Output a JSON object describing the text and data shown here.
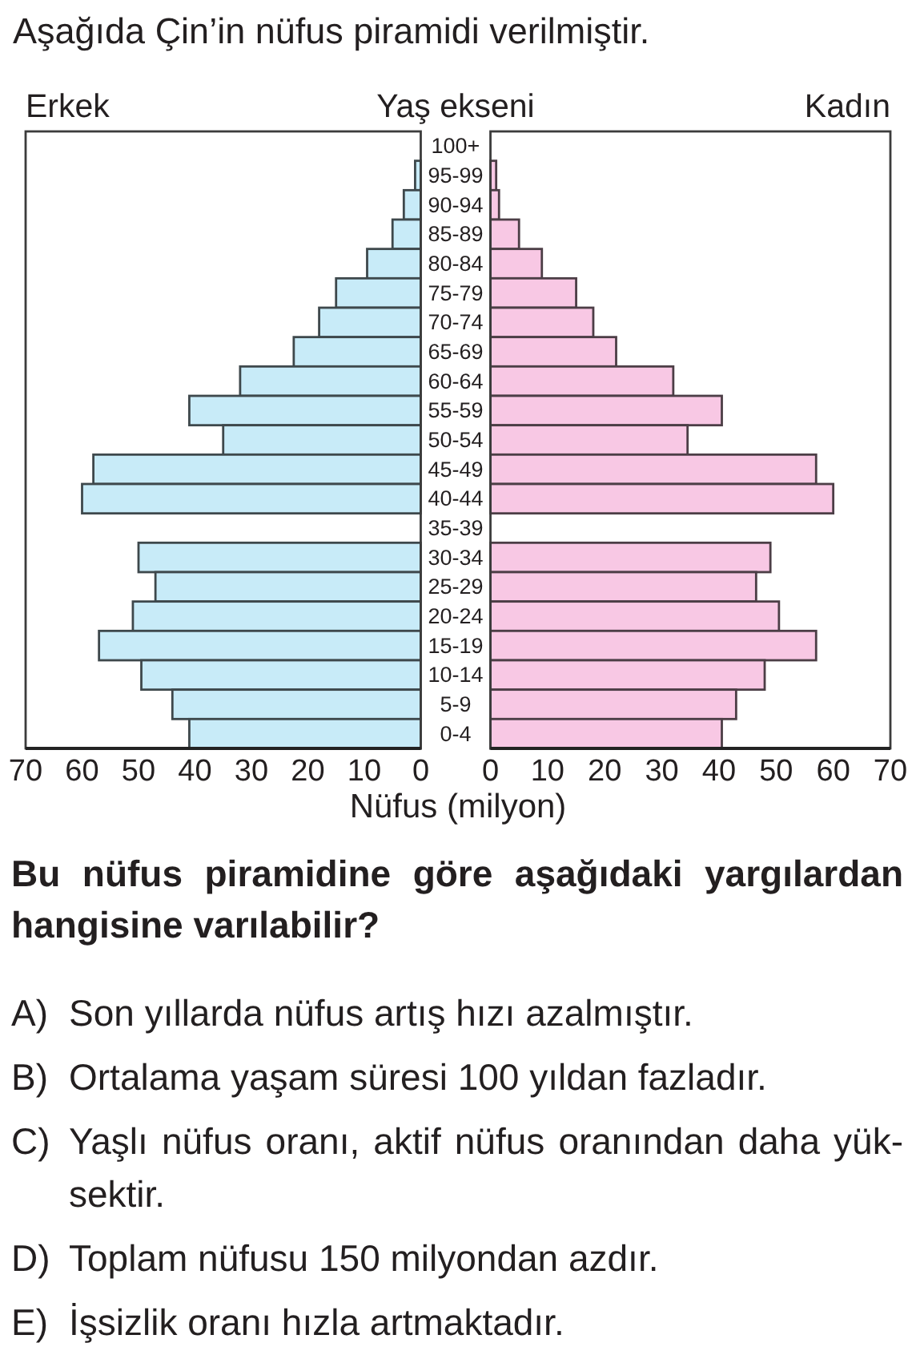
{
  "chart_data": [
    {
      "type": "bar",
      "orientation": "horizontal",
      "title": "Aşağıda Çin’in nüfus piramidi verilmiştir.",
      "ylabel": "Yaş ekseni",
      "xlabel": "Nüfus (milyon)",
      "categories": [
        "100+",
        "95-99",
        "90-94",
        "85-89",
        "80-84",
        "75-79",
        "70-74",
        "65-69",
        "60-64",
        "55-59",
        "50-54",
        "45-49",
        "40-44",
        "35-39",
        "30-34",
        "25-29",
        "20-24",
        "15-19",
        "10-14",
        "5-9",
        "0-4"
      ],
      "series": [
        {
          "name": "Erkek",
          "color": "#c8ebf8",
          "values": [
            null,
            1,
            3,
            5,
            9.5,
            15,
            18,
            22.5,
            32,
            41,
            35,
            58,
            60,
            null,
            50,
            47,
            51,
            57,
            49.5,
            44,
            41
          ]
        }
      ],
      "xlim": [
        70,
        0
      ],
      "xticks": [
        70,
        60,
        50,
        40,
        30,
        20,
        10,
        0
      ],
      "annotations": [
        "Bu nüfus piramidine göre aşağıdaki yargılardan hangisine varılabilir?",
        "A) Son yıllarda nüfus artış hızı azalmıştır.",
        "B) Ortalama yaşam süresi 100 yıldan fazladır.",
        "C) Yaşlı nüfus oranı, aktif nüfus oranından daha yük-sektir.",
        "D) Toplam nüfusu 150 milyondan azdır.",
        "E) İşsizlik oranı hızla artmaktadır."
      ]
    },
    {
      "type": "bar",
      "orientation": "horizontal",
      "categories": [
        "100+",
        "95-99",
        "90-94",
        "85-89",
        "80-84",
        "75-79",
        "70-74",
        "65-69",
        "60-64",
        "55-59",
        "50-54",
        "45-49",
        "40-44",
        "35-39",
        "30-34",
        "25-29",
        "20-24",
        "15-19",
        "10-14",
        "5-9",
        "0-4"
      ],
      "series": [
        {
          "name": "Kadın",
          "color": "#f8c8e4",
          "values": [
            null,
            1,
            1.5,
            5,
            9,
            15,
            18,
            22,
            32,
            40.5,
            34.5,
            57,
            60,
            null,
            49,
            46.5,
            50.5,
            57,
            48,
            43,
            40.5
          ]
        }
      ],
      "xlim": [
        0,
        70
      ],
      "xticks": [
        0,
        10,
        20,
        30,
        40,
        50,
        60,
        70
      ],
      "tick_labels": "x"
    }
  ]
}
